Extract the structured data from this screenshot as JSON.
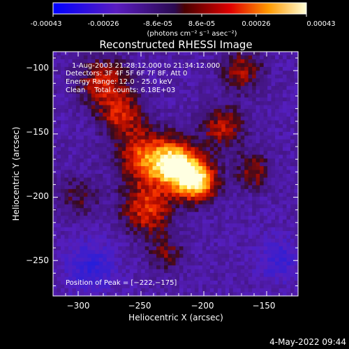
{
  "colorbar": {
    "scale": "blue-white-red",
    "tick_labels": [
      "-0.00043",
      "-0.00026",
      "-8.6e-05",
      "8.6e-05",
      "0.00026",
      "0.00043"
    ],
    "unit_label": "(photons cm⁻² s⁻¹ asec⁻²)",
    "range": [
      -0.00043,
      0.00043
    ]
  },
  "chart_data": {
    "type": "heatmap",
    "title": "Reconstructed RHESSI Image",
    "xlabel": "Heliocentric X (arcsec)",
    "ylabel": "Heliocentric Y (arcsec)",
    "xlim": [
      -320,
      -125
    ],
    "ylim": [
      -278,
      -85
    ],
    "x_ticks": [
      -300,
      -250,
      -200,
      -150
    ],
    "y_ticks": [
      -100,
      -150,
      -200,
      -250
    ],
    "x_tick_labels": [
      "−300",
      "−250",
      "−200",
      "−150"
    ],
    "y_tick_labels": [
      "−100",
      "−150",
      "−200",
      "−250"
    ],
    "annotations": [
      "1-Aug-2003 21:28:12.000 to 21:34:12.000",
      "Detectors: 3F 4F 5F 6F 7F 8F, Att 0",
      "Energy Range: 12.0 - 25.0 keV",
      "Clean    Total counts: 6.18E+03"
    ],
    "peak_label": "Position of Peak = [−222,−175]",
    "peak": [
      -222,
      -175
    ],
    "sources": [
      {
        "x": -222,
        "y": -175,
        "sigma": 13,
        "amp": 1.0
      },
      {
        "x": -205,
        "y": -188,
        "sigma": 11,
        "amp": 0.85
      },
      {
        "x": -248,
        "y": -168,
        "sigma": 15,
        "amp": 0.6
      },
      {
        "x": -245,
        "y": -210,
        "sigma": 14,
        "amp": 0.55
      },
      {
        "x": -265,
        "y": -135,
        "sigma": 12,
        "amp": 0.45
      },
      {
        "x": -280,
        "y": -110,
        "sigma": 14,
        "amp": 0.5
      },
      {
        "x": -185,
        "y": -145,
        "sigma": 12,
        "amp": 0.45
      },
      {
        "x": -160,
        "y": -180,
        "sigma": 10,
        "amp": 0.4
      },
      {
        "x": -170,
        "y": -100,
        "sigma": 12,
        "amp": 0.4
      },
      {
        "x": -230,
        "y": -245,
        "sigma": 10,
        "amp": 0.3
      },
      {
        "x": -300,
        "y": -200,
        "sigma": 12,
        "amp": 0.25
      },
      {
        "x": -140,
        "y": -250,
        "sigma": 12,
        "amp": -0.3
      },
      {
        "x": -290,
        "y": -255,
        "sigma": 14,
        "amp": -0.35
      }
    ]
  },
  "footer": {
    "date": "4-May-2022 09:44"
  }
}
